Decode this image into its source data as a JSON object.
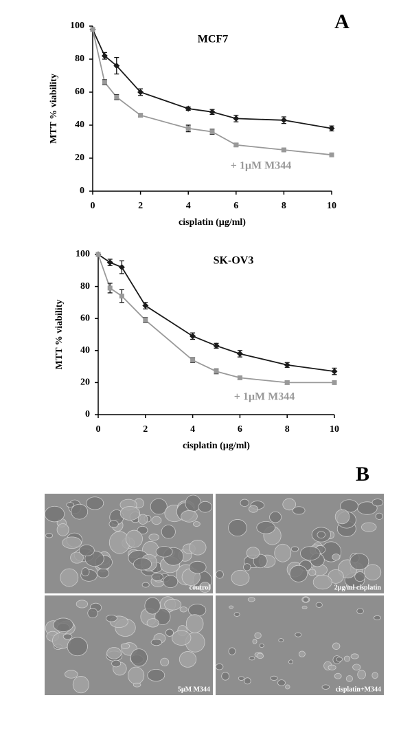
{
  "chart_data": [
    {
      "type": "line",
      "title": "MCF7",
      "xlabel": "cisplatin (µg/ml)",
      "ylabel": "MTT % viability",
      "x": [
        0,
        0.5,
        1,
        2,
        4,
        5,
        6,
        8,
        10
      ],
      "series": [
        {
          "color": "#1a1a1a",
          "marker": "diamond",
          "values": [
            98,
            82,
            76,
            60,
            50,
            48,
            44,
            43,
            38
          ],
          "errors": [
            0,
            2,
            5,
            2,
            1,
            1.5,
            2,
            2,
            1.5
          ]
        },
        {
          "name": "+ 1µM M344",
          "color": "#999999",
          "marker": "square",
          "values": [
            98,
            66,
            57,
            46,
            38,
            36,
            28,
            25,
            22
          ],
          "errors": [
            0,
            1.5,
            1.5,
            1,
            2,
            1.5,
            1,
            1,
            1
          ]
        }
      ],
      "xlim": [
        0,
        10
      ],
      "xticks": [
        0,
        2,
        4,
        6,
        8,
        10
      ],
      "ylim": [
        0,
        100
      ],
      "yticks": [
        0,
        20,
        40,
        60,
        80,
        100
      ],
      "grid": false
    },
    {
      "type": "line",
      "title": "SK-OV3",
      "xlabel": "cisplatin (µg/ml)",
      "ylabel": "MTT % viability",
      "x": [
        0,
        0.5,
        1,
        2,
        4,
        5,
        6,
        8,
        10
      ],
      "series": [
        {
          "color": "#1a1a1a",
          "marker": "diamond",
          "values": [
            100,
            95,
            92,
            68,
            49,
            43,
            38,
            31,
            27
          ],
          "errors": [
            0,
            2,
            4,
            2,
            2,
            1.5,
            2,
            1.5,
            2
          ]
        },
        {
          "name": "+ 1µM M344",
          "color": "#999999",
          "marker": "square",
          "values": [
            100,
            79,
            74,
            59,
            34,
            27,
            23,
            20,
            20
          ],
          "errors": [
            0,
            3,
            4,
            1.5,
            1.5,
            1.5,
            1,
            1,
            1
          ]
        }
      ],
      "xlim": [
        0,
        10
      ],
      "xticks": [
        0,
        2,
        4,
        6,
        8,
        10
      ],
      "ylim": [
        0,
        100
      ],
      "yticks": [
        0,
        20,
        40,
        60,
        80,
        100
      ],
      "grid": false
    }
  ],
  "panels": {
    "a": "A",
    "b": "B"
  },
  "micrographs": [
    "control",
    "2µg/ml cisplatin",
    "5µM M344",
    "cisplatin+M344"
  ]
}
